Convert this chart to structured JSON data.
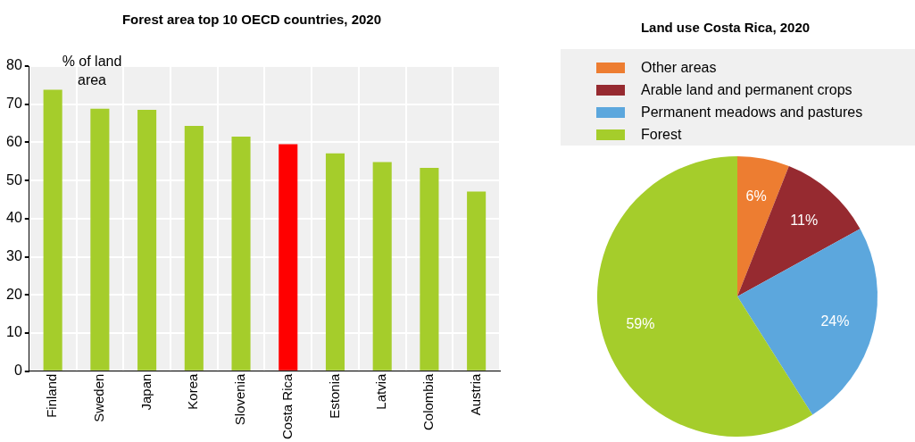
{
  "chart_data": [
    {
      "type": "bar",
      "title": "Forest area top 10 OECD countries, 2020",
      "ylabel": "% of land area",
      "categories": [
        "Finland",
        "Sweden",
        "Japan",
        "Korea",
        "Slovenia",
        "Costa Rica",
        "Estonia",
        "Latvia",
        "Colombia",
        "Austria"
      ],
      "values": [
        73.8,
        68.8,
        68.5,
        64.3,
        61.5,
        59.5,
        57.1,
        54.8,
        53.3,
        47.1
      ],
      "colors": [
        "#a5cd2b",
        "#a5cd2b",
        "#a5cd2b",
        "#a5cd2b",
        "#a5cd2b",
        "#ff0000",
        "#a5cd2b",
        "#a5cd2b",
        "#a5cd2b",
        "#a5cd2b"
      ],
      "ylim": [
        0,
        80
      ],
      "yticks": [
        0,
        10,
        20,
        30,
        40,
        50,
        60,
        70,
        80
      ],
      "grid": true,
      "legend": false
    },
    {
      "type": "pie",
      "title": "Land use Costa Rica, 2020",
      "categories": [
        "Other areas",
        "Arable land and permanent crops",
        "Permanent meadows and pastures",
        "Forest"
      ],
      "values": [
        6,
        11,
        24,
        59
      ],
      "colors": [
        "#ed7d31",
        "#962a30",
        "#5ca7dd",
        "#a5cd2b"
      ],
      "value_labels": [
        "6%",
        "11%",
        "24%",
        "59%"
      ],
      "legend": "top"
    }
  ]
}
